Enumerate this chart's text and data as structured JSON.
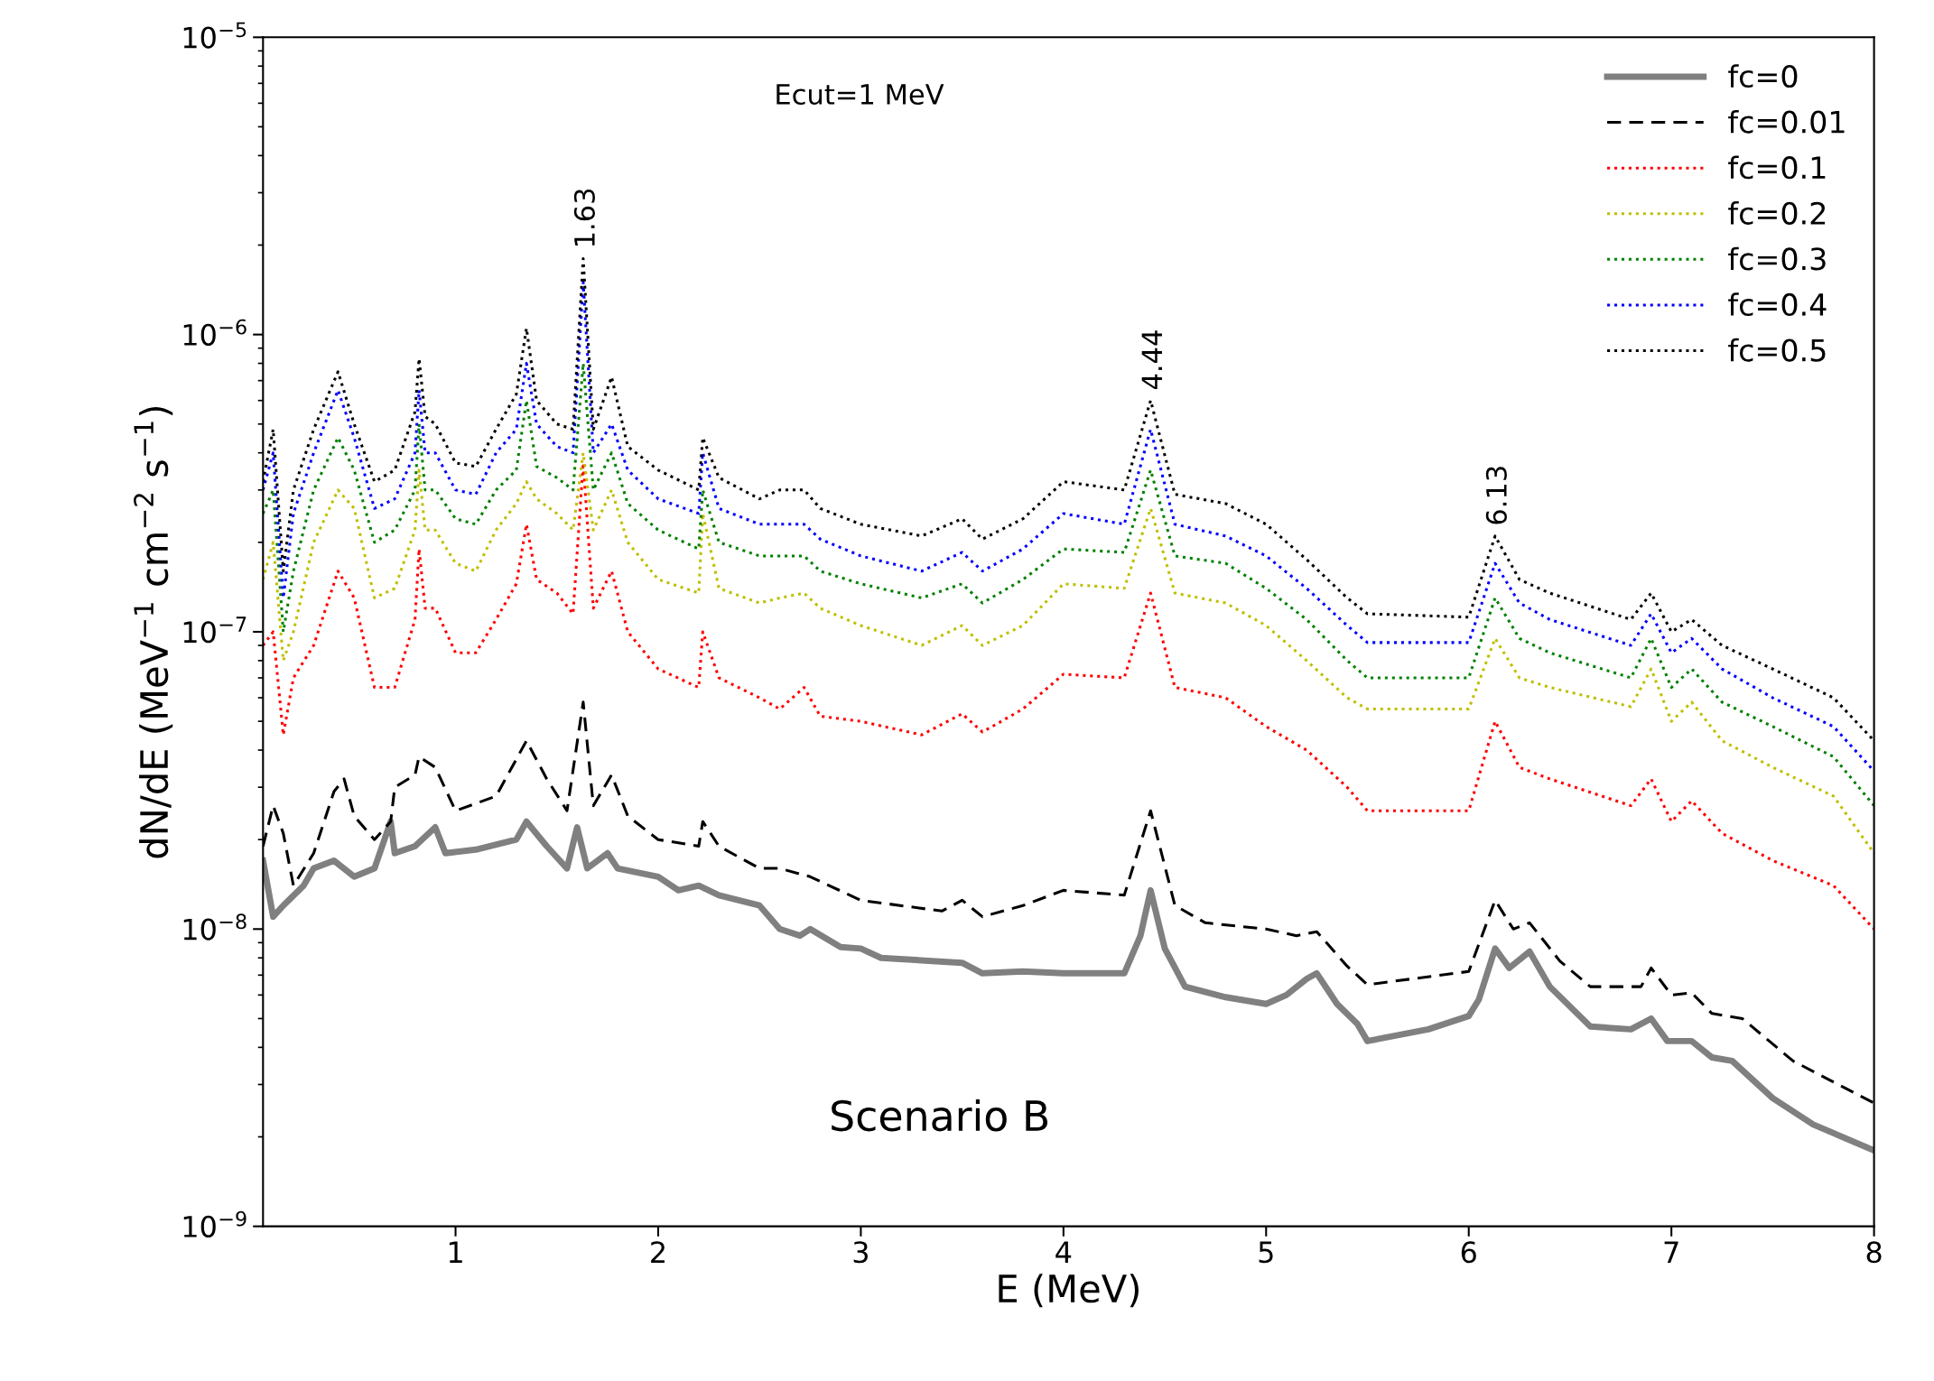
{
  "chart_data": {
    "type": "line",
    "xlabel": "E (MeV)",
    "ylabel": "dN/dE (MeV$^{−1}$ cm$^{−2}$ s$^{−1}$)",
    "log": "y",
    "xlim": [
      0.05,
      8
    ],
    "xticks": [
      1,
      2,
      3,
      4,
      5,
      6,
      7,
      8
    ],
    "ylim": [
      1e-09,
      1e-05
    ],
    "yticks": [
      {
        "value": 1e-09,
        "label": "10$^{−9}$"
      },
      {
        "value": 1e-08,
        "label": "10$^{−8}$"
      },
      {
        "value": 1e-07,
        "label": "10$^{−7}$"
      },
      {
        "value": 1e-06,
        "label": "10$^{−6}$"
      },
      {
        "value": 1e-05,
        "label": "10$^{−5}$"
      }
    ],
    "grid": false,
    "legend": "top right",
    "marker": "none",
    "annotations": [
      "Ecut=1 MeV",
      {
        "text": "1.63",
        "x": 1.63,
        "y": 1.8e-06
      },
      {
        "text": "4.44",
        "x": 4.43,
        "y": 6e-07
      },
      {
        "text": "6.13",
        "x": 6.13,
        "y": 2.1e-07
      },
      "Scenario B"
    ],
    "series": [
      {
        "name": "fc=0",
        "color": "#808080",
        "line_style": "solid",
        "x": [
          0.05,
          0.1,
          0.15,
          0.25,
          0.3,
          0.4,
          0.5,
          0.6,
          0.68,
          0.7,
          0.8,
          0.9,
          0.95,
          1.1,
          1.3,
          1.35,
          1.45,
          1.55,
          1.6,
          1.65,
          1.75,
          1.8,
          2.0,
          2.1,
          2.2,
          2.3,
          2.5,
          2.6,
          2.7,
          2.75,
          2.9,
          3.0,
          3.1,
          3.5,
          3.6,
          3.8,
          4.0,
          4.3,
          4.38,
          4.43,
          4.5,
          4.6,
          4.8,
          5.0,
          5.1,
          5.2,
          5.25,
          5.35,
          5.45,
          5.5,
          5.8,
          6.0,
          6.05,
          6.13,
          6.2,
          6.3,
          6.4,
          6.6,
          6.8,
          6.9,
          6.98,
          7.1,
          7.2,
          7.3,
          7.5,
          7.7,
          8.0
        ],
        "values": [
          1.7e-08,
          1.1e-08,
          1.2e-08,
          1.4e-08,
          1.6e-08,
          1.7e-08,
          1.5e-08,
          1.6e-08,
          2.3e-08,
          1.8e-08,
          1.9e-08,
          2.2e-08,
          1.8e-08,
          1.85e-08,
          2e-08,
          2.3e-08,
          1.9e-08,
          1.6e-08,
          2.2e-08,
          1.6e-08,
          1.8e-08,
          1.6e-08,
          1.5e-08,
          1.35e-08,
          1.4e-08,
          1.3e-08,
          1.2e-08,
          1e-08,
          9.5e-09,
          1e-08,
          8.7e-09,
          8.6e-09,
          8e-09,
          7.7e-09,
          7.1e-09,
          7.2e-09,
          7.1e-09,
          7.1e-09,
          9.5e-09,
          1.35e-08,
          8.6e-09,
          6.4e-09,
          5.9e-09,
          5.6e-09,
          6e-09,
          6.8e-09,
          7.1e-09,
          5.6e-09,
          4.8e-09,
          4.2e-09,
          4.6e-09,
          5.1e-09,
          5.8e-09,
          8.6e-09,
          7.4e-09,
          8.4e-09,
          6.4e-09,
          4.7e-09,
          4.6e-09,
          5e-09,
          4.2e-09,
          4.2e-09,
          3.7e-09,
          3.6e-09,
          2.7e-09,
          2.2e-09,
          1.8e-09
        ]
      },
      {
        "name": "fc=0.01",
        "color": "#000000",
        "line_style": "dashed",
        "x": [
          0.05,
          0.1,
          0.15,
          0.2,
          0.3,
          0.4,
          0.45,
          0.5,
          0.6,
          0.68,
          0.7,
          0.8,
          0.82,
          0.9,
          1.0,
          1.2,
          1.35,
          1.45,
          1.55,
          1.63,
          1.68,
          1.77,
          1.85,
          2.0,
          2.2,
          2.22,
          2.3,
          2.5,
          2.6,
          2.75,
          3.0,
          3.4,
          3.5,
          3.6,
          3.8,
          4.0,
          4.3,
          4.43,
          4.55,
          4.7,
          5.0,
          5.15,
          5.25,
          5.4,
          5.5,
          6.0,
          6.13,
          6.22,
          6.3,
          6.45,
          6.6,
          6.85,
          6.9,
          7.0,
          7.1,
          7.2,
          7.35,
          7.6,
          8.0
        ],
        "values": [
          1.9e-08,
          2.6e-08,
          2.1e-08,
          1.4e-08,
          1.8e-08,
          2.9e-08,
          3.2e-08,
          2.4e-08,
          2e-08,
          2.3e-08,
          3e-08,
          3.3e-08,
          3.8e-08,
          3.5e-08,
          2.5e-08,
          2.8e-08,
          4.3e-08,
          3.2e-08,
          2.5e-08,
          5.8e-08,
          2.6e-08,
          3.3e-08,
          2.4e-08,
          2e-08,
          1.9e-08,
          2.3e-08,
          1.9e-08,
          1.6e-08,
          1.6e-08,
          1.5e-08,
          1.25e-08,
          1.15e-08,
          1.25e-08,
          1.1e-08,
          1.2e-08,
          1.35e-08,
          1.3e-08,
          2.5e-08,
          1.2e-08,
          1.05e-08,
          1e-08,
          9.5e-09,
          9.8e-09,
          7.5e-09,
          6.5e-09,
          7.2e-09,
          1.25e-08,
          1e-08,
          1.05e-08,
          7.8e-09,
          6.4e-09,
          6.4e-09,
          7.4e-09,
          6e-09,
          6.1e-09,
          5.2e-09,
          5e-09,
          3.6e-09,
          2.6e-09
        ]
      },
      {
        "name": "fc=0.1",
        "color": "#ff0000",
        "line_style": "dotted",
        "values": [
          9e-08,
          1e-07,
          4.5e-08,
          7e-08,
          9e-08,
          1.6e-07,
          1.3e-07,
          6.5e-08,
          6.5e-08,
          1.1e-07,
          1.9e-07,
          1.2e-07,
          1.2e-07,
          8.5e-08,
          8.5e-08,
          1.1e-07,
          1.45e-07,
          2.3e-07,
          1.5e-07,
          1.35e-07,
          1.15e-07,
          3.7e-07,
          1.2e-07,
          1.6e-07,
          1e-07,
          7.5e-08,
          6.5e-08,
          1e-07,
          7e-08,
          6e-08,
          5.5e-08,
          6.5e-08,
          5.2e-08,
          5e-08,
          4.5e-08,
          5.3e-08,
          4.6e-08,
          5.5e-08,
          7.2e-08,
          7e-08,
          1.35e-07,
          6.5e-08,
          6e-08,
          4.8e-08,
          4e-08,
          3e-08,
          2.5e-08,
          2.5e-08,
          5e-08,
          3.5e-08,
          3.2e-08,
          2.6e-08,
          3.2e-08,
          2.3e-08,
          2.7e-08,
          2.1e-08,
          1.7e-08,
          1.4e-08,
          1e-08
        ]
      },
      {
        "name": "fc=0.2",
        "color": "#bfbf00",
        "line_style": "dotted",
        "values": [
          1.5e-07,
          2e-07,
          8e-08,
          1e-07,
          2e-07,
          3e-07,
          2.6e-07,
          1.3e-07,
          1.4e-07,
          2.2e-07,
          3.5e-07,
          2.2e-07,
          2.2e-07,
          1.7e-07,
          1.6e-07,
          2.2e-07,
          2.7e-07,
          3.2e-07,
          2.8e-07,
          2.5e-07,
          2.2e-07,
          4e-07,
          2.2e-07,
          3e-07,
          2e-07,
          1.5e-07,
          1.35e-07,
          2.5e-07,
          1.4e-07,
          1.25e-07,
          1.3e-07,
          1.35e-07,
          1.2e-07,
          1.05e-07,
          9e-08,
          1.05e-07,
          9e-08,
          1.05e-07,
          1.45e-07,
          1.4e-07,
          2.6e-07,
          1.35e-07,
          1.25e-07,
          1.05e-07,
          8e-08,
          6e-08,
          5.5e-08,
          5.5e-08,
          9.5e-08,
          7e-08,
          6.5e-08,
          5.6e-08,
          7.5e-08,
          5e-08,
          5.8e-08,
          4.3e-08,
          3.5e-08,
          2.8e-08,
          1.8e-08
        ]
      },
      {
        "name": "fc=0.3",
        "color": "#008000",
        "line_style": "dotted",
        "values": [
          2.5e-07,
          3e-07,
          1e-07,
          1.6e-07,
          3e-07,
          4.5e-07,
          3.5e-07,
          2e-07,
          2.2e-07,
          3e-07,
          5e-07,
          3e-07,
          3e-07,
          2.4e-07,
          2.3e-07,
          3e-07,
          3.5e-07,
          6e-07,
          3.6e-07,
          3.3e-07,
          3e-07,
          8e-07,
          3e-07,
          4e-07,
          2.7e-07,
          2.2e-07,
          1.9e-07,
          3e-07,
          2e-07,
          1.8e-07,
          1.8e-07,
          1.8e-07,
          1.6e-07,
          1.45e-07,
          1.3e-07,
          1.45e-07,
          1.25e-07,
          1.5e-07,
          1.9e-07,
          1.85e-07,
          3.5e-07,
          1.8e-07,
          1.7e-07,
          1.4e-07,
          1.1e-07,
          8e-08,
          7e-08,
          7e-08,
          1.3e-07,
          9.5e-08,
          8.5e-08,
          7e-08,
          9.5e-08,
          6.5e-08,
          7.5e-08,
          5.8e-08,
          4.8e-08,
          3.8e-08,
          2.6e-08
        ]
      },
      {
        "name": "fc=0.4",
        "color": "#0000ff",
        "line_style": "dotted",
        "values": [
          3e-07,
          4e-07,
          1.3e-07,
          2.5e-07,
          4e-07,
          6.5e-07,
          4.5e-07,
          2.6e-07,
          2.8e-07,
          4e-07,
          6.5e-07,
          4e-07,
          4e-07,
          3e-07,
          2.9e-07,
          4e-07,
          4.8e-07,
          8e-07,
          5e-07,
          4.2e-07,
          4e-07,
          1.5e-06,
          4e-07,
          5e-07,
          3.5e-07,
          2.8e-07,
          2.5e-07,
          4e-07,
          2.6e-07,
          2.3e-07,
          2.3e-07,
          2.3e-07,
          2.05e-07,
          1.8e-07,
          1.6e-07,
          1.85e-07,
          1.6e-07,
          1.9e-07,
          2.5e-07,
          2.3e-07,
          4.8e-07,
          2.3e-07,
          2.1e-07,
          1.8e-07,
          1.4e-07,
          1.05e-07,
          9.2e-08,
          9.2e-08,
          1.7e-07,
          1.25e-07,
          1.1e-07,
          9e-08,
          1.15e-07,
          8.5e-08,
          9.5e-08,
          7.5e-08,
          6e-08,
          4.8e-08,
          3.4e-08
        ]
      },
      {
        "name": "fc=0.5",
        "color": "#000000",
        "line_style": "dotted",
        "values": [
          3.2e-07,
          4.8e-07,
          1.6e-07,
          3e-07,
          4.8e-07,
          7.5e-07,
          5e-07,
          3.2e-07,
          3.5e-07,
          5.5e-07,
          8.3e-07,
          5.3e-07,
          5e-07,
          3.7e-07,
          3.6e-07,
          4.8e-07,
          6.3e-07,
          1.05e-06,
          6e-07,
          5e-07,
          4.8e-07,
          1.8e-06,
          4.8e-07,
          7.2e-07,
          4.2e-07,
          3.5e-07,
          3e-07,
          4.5e-07,
          3.3e-07,
          2.8e-07,
          3e-07,
          3e-07,
          2.6e-07,
          2.3e-07,
          2.1e-07,
          2.4e-07,
          2.05e-07,
          2.4e-07,
          3.2e-07,
          3e-07,
          6e-07,
          2.9e-07,
          2.7e-07,
          2.3e-07,
          1.75e-07,
          1.3e-07,
          1.15e-07,
          1.12e-07,
          2.1e-07,
          1.5e-07,
          1.35e-07,
          1.1e-07,
          1.35e-07,
          1e-07,
          1.1e-07,
          9e-08,
          7.5e-08,
          6e-08,
          4.3e-08
        ]
      }
    ],
    "x": [
      0.05,
      0.1,
      0.15,
      0.2,
      0.3,
      0.42,
      0.5,
      0.6,
      0.7,
      0.8,
      0.82,
      0.85,
      0.9,
      1.0,
      1.1,
      1.2,
      1.3,
      1.35,
      1.4,
      1.5,
      1.58,
      1.63,
      1.68,
      1.77,
      1.85,
      2.0,
      2.2,
      2.22,
      2.3,
      2.5,
      2.6,
      2.72,
      2.8,
      3.0,
      3.3,
      3.5,
      3.6,
      3.8,
      4.0,
      4.3,
      4.43,
      4.55,
      4.8,
      5.0,
      5.2,
      5.4,
      5.5,
      6.0,
      6.13,
      6.25,
      6.4,
      6.8,
      6.9,
      7.0,
      7.1,
      7.25,
      7.5,
      7.8,
      8.0
    ]
  }
}
